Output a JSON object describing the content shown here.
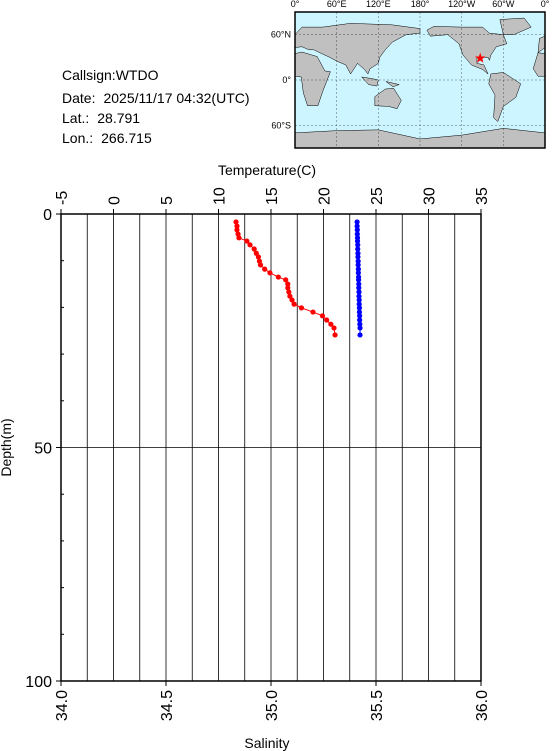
{
  "info": [
    {
      "label": "Callsign:",
      "value": "WTDO"
    },
    {
      "label": "Date:",
      "value": "2025/11/17 04:32(UTC)"
    },
    {
      "label": "Lat.:",
      "value": 28.791
    },
    {
      "label": "Lon.:",
      "value": 266.715
    }
  ],
  "map": {
    "lonlim": [
      0,
      360
    ],
    "latlim": [
      -90,
      90
    ],
    "lonticks": [
      {
        "value": 0,
        "label": "0°"
      },
      {
        "value": 60,
        "label": "60°E"
      },
      {
        "value": 120,
        "label": "120°E"
      },
      {
        "value": 180,
        "label": "180°"
      },
      {
        "value": 240,
        "label": "120°W"
      },
      {
        "value": 300,
        "label": "60°W"
      },
      {
        "value": 360,
        "label": "0°"
      }
    ],
    "latticks": [
      {
        "value": 60,
        "label": "60°N"
      },
      {
        "value": 0,
        "label": "0°"
      },
      {
        "value": -60,
        "label": "60°S"
      }
    ]
  },
  "chart_data": {
    "type": "profile",
    "depth": [
      1.7,
      2.6,
      3.4,
      4.3,
      5.1,
      5.8,
      6.6,
      7.5,
      8.4,
      9.2,
      10.1,
      10.9,
      11.8,
      12.6,
      13.5,
      14.1,
      15.0,
      15.8,
      16.7,
      17.6,
      18.4,
      19.3,
      20.1,
      21.0,
      21.8,
      22.7,
      23.6,
      24.4,
      25.9
    ],
    "series": [
      {
        "color": "#ff0000",
        "axis": "x",
        "values": [
          11.67,
          11.76,
          11.76,
          11.86,
          11.95,
          12.7,
          13.0,
          13.4,
          13.6,
          13.8,
          13.9,
          14.0,
          14.4,
          14.9,
          15.7,
          16.4,
          16.6,
          16.6,
          16.7,
          16.8,
          17.0,
          17.2,
          17.9,
          19.0,
          19.9,
          20.3,
          20.7,
          21.0,
          21.1
        ]
      },
      {
        "color": "#0000ff",
        "axis": "x2",
        "values": [
          35.41,
          35.41,
          35.411,
          35.411,
          35.412,
          35.412,
          35.413,
          35.413,
          35.414,
          35.414,
          35.415,
          35.415,
          35.416,
          35.416,
          35.417,
          35.417,
          35.418,
          35.418,
          35.419,
          35.419,
          35.42,
          35.42,
          35.421,
          35.421,
          35.422,
          35.422,
          35.423,
          35.424,
          35.424
        ]
      }
    ],
    "xlabel": "Temperature(C)",
    "xlim": [
      -5,
      35
    ],
    "xticks": [
      -5,
      0,
      5,
      10,
      15,
      20,
      25,
      30,
      35
    ],
    "xminorticks": [
      -2.5,
      2.5,
      7.5,
      12.5,
      17.5,
      22.5,
      27.5,
      32.5
    ],
    "x2label": "Salinity",
    "x2lim": [
      34,
      36
    ],
    "x2ticks": [
      {
        "value": 34,
        "label": "34.0"
      },
      {
        "value": 34.5,
        "label": "34.5"
      },
      {
        "value": 35,
        "label": "35.0"
      },
      {
        "value": 35.5,
        "label": "35.5"
      },
      {
        "value": 36,
        "label": "36.0"
      }
    ],
    "ylabel": "Depth(m)",
    "ylim": [
      0,
      100
    ],
    "yticks": [
      0,
      50,
      100
    ],
    "yminorticks": [
      10,
      20,
      30,
      40,
      60,
      70,
      80,
      90
    ],
    "grid": true
  }
}
